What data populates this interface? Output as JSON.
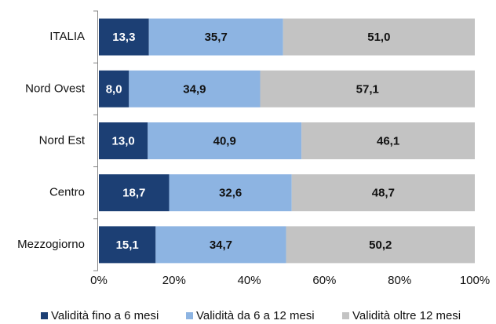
{
  "chart_data": {
    "type": "stacked_bar_horizontal",
    "categories": [
      "ITALIA",
      "Nord Ovest",
      "Nord Est",
      "Centro",
      "Mezzogiorno"
    ],
    "series": [
      {
        "name": "Validità fino a 6 mesi",
        "color": "#1c3f74",
        "label_color": "#ffffff",
        "values": [
          13.3,
          8.0,
          13.0,
          18.7,
          15.1
        ],
        "value_labels": [
          "13,3",
          "8,0",
          "13,0",
          "18,7",
          "15,1"
        ]
      },
      {
        "name": "Validità da 6 a 12 mesi",
        "color": "#8db4e2",
        "label_color": "#111111",
        "values": [
          35.7,
          34.9,
          40.9,
          32.6,
          34.7
        ],
        "value_labels": [
          "35,7",
          "34,9",
          "40,9",
          "32,6",
          "34,7"
        ]
      },
      {
        "name": "Validità oltre 12 mesi",
        "color": "#c3c3c3",
        "label_color": "#111111",
        "values": [
          51.0,
          57.1,
          46.1,
          48.7,
          50.2
        ],
        "value_labels": [
          "51,0",
          "57,1",
          "46,1",
          "48,7",
          "50,2"
        ]
      }
    ],
    "xlim": [
      0,
      100
    ],
    "xticks": [
      {
        "value": 0,
        "label": "0%"
      },
      {
        "value": 20,
        "label": "20%"
      },
      {
        "value": 40,
        "label": "40%"
      },
      {
        "value": 60,
        "label": "60%"
      },
      {
        "value": 80,
        "label": "80%"
      },
      {
        "value": 100,
        "label": "100%"
      }
    ],
    "legend": "bottom"
  }
}
